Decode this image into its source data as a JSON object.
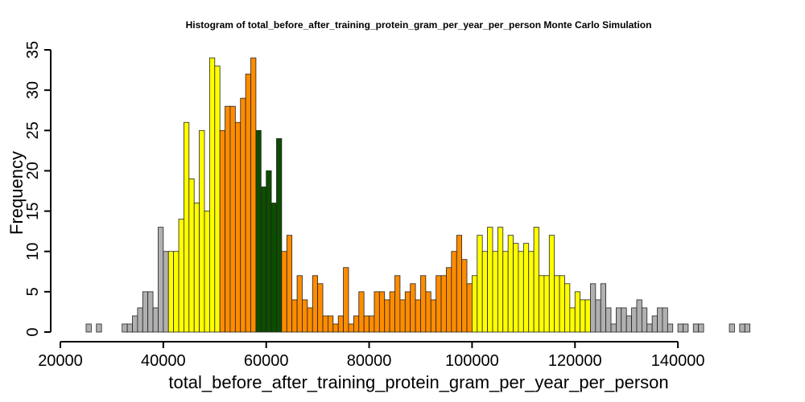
{
  "chart_data": {
    "type": "bar",
    "title": "Histogram of  total_before_after_training_protein_gram_per_year_per_person  Monte Carlo Simulation",
    "xlabel": "total_before_after_training_protein_gram_per_year_per_person",
    "ylabel": "Frequency",
    "xlim": [
      20000,
      155000
    ],
    "ylim": [
      0,
      35
    ],
    "bin_width": 1000,
    "x_ticks": [
      20000,
      40000,
      60000,
      80000,
      100000,
      120000,
      140000
    ],
    "x_tick_labels": [
      "20000",
      "40000",
      "60000",
      "80000",
      "100000",
      "120000",
      "140000"
    ],
    "y_ticks": [
      0,
      5,
      10,
      15,
      20,
      25,
      30,
      35
    ],
    "y_tick_labels": [
      "0",
      "5",
      "10",
      "15",
      "20",
      "25",
      "30",
      "35"
    ],
    "grid": false,
    "colors": {
      "gray": "#b0b0b0",
      "yellow": "#ffff00",
      "orange": "#ff8c00",
      "green": "#0d4d00"
    },
    "bins": [
      {
        "x0": 25000,
        "x1": 26000,
        "count": 1,
        "color": "gray"
      },
      {
        "x0": 26000,
        "x1": 27000,
        "count": 0,
        "color": "gray"
      },
      {
        "x0": 27000,
        "x1": 28000,
        "count": 1,
        "color": "gray"
      },
      {
        "x0": 28000,
        "x1": 29000,
        "count": 0,
        "color": "gray"
      },
      {
        "x0": 29000,
        "x1": 30000,
        "count": 0,
        "color": "gray"
      },
      {
        "x0": 30000,
        "x1": 31000,
        "count": 0,
        "color": "gray"
      },
      {
        "x0": 31000,
        "x1": 32000,
        "count": 0,
        "color": "gray"
      },
      {
        "x0": 32000,
        "x1": 33000,
        "count": 1,
        "color": "gray"
      },
      {
        "x0": 33000,
        "x1": 34000,
        "count": 1,
        "color": "gray"
      },
      {
        "x0": 34000,
        "x1": 35000,
        "count": 2,
        "color": "gray"
      },
      {
        "x0": 35000,
        "x1": 36000,
        "count": 3,
        "color": "gray"
      },
      {
        "x0": 36000,
        "x1": 37000,
        "count": 5,
        "color": "gray"
      },
      {
        "x0": 37000,
        "x1": 38000,
        "count": 5,
        "color": "gray"
      },
      {
        "x0": 38000,
        "x1": 39000,
        "count": 3,
        "color": "gray"
      },
      {
        "x0": 39000,
        "x1": 40000,
        "count": 13,
        "color": "gray"
      },
      {
        "x0": 40000,
        "x1": 41000,
        "count": 10,
        "color": "gray"
      },
      {
        "x0": 41000,
        "x1": 42000,
        "count": 10,
        "color": "yellow"
      },
      {
        "x0": 42000,
        "x1": 43000,
        "count": 10,
        "color": "yellow"
      },
      {
        "x0": 43000,
        "x1": 44000,
        "count": 14,
        "color": "yellow"
      },
      {
        "x0": 44000,
        "x1": 45000,
        "count": 26,
        "color": "yellow"
      },
      {
        "x0": 45000,
        "x1": 46000,
        "count": 19,
        "color": "yellow"
      },
      {
        "x0": 46000,
        "x1": 47000,
        "count": 16,
        "color": "yellow"
      },
      {
        "x0": 47000,
        "x1": 48000,
        "count": 25,
        "color": "yellow"
      },
      {
        "x0": 48000,
        "x1": 49000,
        "count": 15,
        "color": "yellow"
      },
      {
        "x0": 49000,
        "x1": 50000,
        "count": 34,
        "color": "yellow"
      },
      {
        "x0": 50000,
        "x1": 51000,
        "count": 33,
        "color": "yellow"
      },
      {
        "x0": 51000,
        "x1": 52000,
        "count": 25,
        "color": "orange"
      },
      {
        "x0": 52000,
        "x1": 53000,
        "count": 28,
        "color": "orange"
      },
      {
        "x0": 53000,
        "x1": 54000,
        "count": 28,
        "color": "orange"
      },
      {
        "x0": 54000,
        "x1": 55000,
        "count": 26,
        "color": "orange"
      },
      {
        "x0": 55000,
        "x1": 56000,
        "count": 29,
        "color": "orange"
      },
      {
        "x0": 56000,
        "x1": 57000,
        "count": 32,
        "color": "orange"
      },
      {
        "x0": 57000,
        "x1": 58000,
        "count": 34,
        "color": "orange"
      },
      {
        "x0": 58000,
        "x1": 59000,
        "count": 25,
        "color": "green"
      },
      {
        "x0": 59000,
        "x1": 60000,
        "count": 18,
        "color": "green"
      },
      {
        "x0": 60000,
        "x1": 61000,
        "count": 20,
        "color": "green"
      },
      {
        "x0": 61000,
        "x1": 62000,
        "count": 16,
        "color": "green"
      },
      {
        "x0": 62000,
        "x1": 63000,
        "count": 24,
        "color": "green"
      },
      {
        "x0": 63000,
        "x1": 64000,
        "count": 10,
        "color": "orange"
      },
      {
        "x0": 64000,
        "x1": 65000,
        "count": 12,
        "color": "orange"
      },
      {
        "x0": 65000,
        "x1": 66000,
        "count": 4,
        "color": "orange"
      },
      {
        "x0": 66000,
        "x1": 67000,
        "count": 7,
        "color": "orange"
      },
      {
        "x0": 67000,
        "x1": 68000,
        "count": 4,
        "color": "orange"
      },
      {
        "x0": 68000,
        "x1": 69000,
        "count": 3,
        "color": "orange"
      },
      {
        "x0": 69000,
        "x1": 70000,
        "count": 7,
        "color": "orange"
      },
      {
        "x0": 70000,
        "x1": 71000,
        "count": 6,
        "color": "orange"
      },
      {
        "x0": 71000,
        "x1": 72000,
        "count": 2,
        "color": "orange"
      },
      {
        "x0": 72000,
        "x1": 73000,
        "count": 2,
        "color": "orange"
      },
      {
        "x0": 73000,
        "x1": 74000,
        "count": 1,
        "color": "orange"
      },
      {
        "x0": 74000,
        "x1": 75000,
        "count": 2,
        "color": "orange"
      },
      {
        "x0": 75000,
        "x1": 76000,
        "count": 8,
        "color": "orange"
      },
      {
        "x0": 76000,
        "x1": 77000,
        "count": 1,
        "color": "orange"
      },
      {
        "x0": 77000,
        "x1": 78000,
        "count": 2,
        "color": "orange"
      },
      {
        "x0": 78000,
        "x1": 79000,
        "count": 5,
        "color": "orange"
      },
      {
        "x0": 79000,
        "x1": 80000,
        "count": 2,
        "color": "orange"
      },
      {
        "x0": 80000,
        "x1": 81000,
        "count": 2,
        "color": "orange"
      },
      {
        "x0": 81000,
        "x1": 82000,
        "count": 5,
        "color": "orange"
      },
      {
        "x0": 82000,
        "x1": 83000,
        "count": 5,
        "color": "orange"
      },
      {
        "x0": 83000,
        "x1": 84000,
        "count": 4,
        "color": "orange"
      },
      {
        "x0": 84000,
        "x1": 85000,
        "count": 5,
        "color": "orange"
      },
      {
        "x0": 85000,
        "x1": 86000,
        "count": 7,
        "color": "orange"
      },
      {
        "x0": 86000,
        "x1": 87000,
        "count": 4,
        "color": "orange"
      },
      {
        "x0": 87000,
        "x1": 88000,
        "count": 5,
        "color": "orange"
      },
      {
        "x0": 88000,
        "x1": 89000,
        "count": 6,
        "color": "orange"
      },
      {
        "x0": 89000,
        "x1": 90000,
        "count": 4,
        "color": "orange"
      },
      {
        "x0": 90000,
        "x1": 91000,
        "count": 7,
        "color": "orange"
      },
      {
        "x0": 91000,
        "x1": 92000,
        "count": 5,
        "color": "orange"
      },
      {
        "x0": 92000,
        "x1": 93000,
        "count": 4,
        "color": "orange"
      },
      {
        "x0": 93000,
        "x1": 94000,
        "count": 7,
        "color": "orange"
      },
      {
        "x0": 94000,
        "x1": 95000,
        "count": 7,
        "color": "orange"
      },
      {
        "x0": 95000,
        "x1": 96000,
        "count": 8,
        "color": "orange"
      },
      {
        "x0": 96000,
        "x1": 97000,
        "count": 10,
        "color": "orange"
      },
      {
        "x0": 97000,
        "x1": 98000,
        "count": 12,
        "color": "orange"
      },
      {
        "x0": 98000,
        "x1": 99000,
        "count": 9,
        "color": "orange"
      },
      {
        "x0": 99000,
        "x1": 100000,
        "count": 6,
        "color": "orange"
      },
      {
        "x0": 100000,
        "x1": 101000,
        "count": 7,
        "color": "yellow"
      },
      {
        "x0": 101000,
        "x1": 102000,
        "count": 12,
        "color": "yellow"
      },
      {
        "x0": 102000,
        "x1": 103000,
        "count": 10,
        "color": "yellow"
      },
      {
        "x0": 103000,
        "x1": 104000,
        "count": 13,
        "color": "yellow"
      },
      {
        "x0": 104000,
        "x1": 105000,
        "count": 10,
        "color": "yellow"
      },
      {
        "x0": 105000,
        "x1": 106000,
        "count": 13,
        "color": "yellow"
      },
      {
        "x0": 106000,
        "x1": 107000,
        "count": 10,
        "color": "yellow"
      },
      {
        "x0": 107000,
        "x1": 108000,
        "count": 12,
        "color": "yellow"
      },
      {
        "x0": 108000,
        "x1": 109000,
        "count": 11,
        "color": "yellow"
      },
      {
        "x0": 109000,
        "x1": 110000,
        "count": 10,
        "color": "yellow"
      },
      {
        "x0": 110000,
        "x1": 111000,
        "count": 11,
        "color": "yellow"
      },
      {
        "x0": 111000,
        "x1": 112000,
        "count": 10,
        "color": "yellow"
      },
      {
        "x0": 112000,
        "x1": 113000,
        "count": 13,
        "color": "yellow"
      },
      {
        "x0": 113000,
        "x1": 114000,
        "count": 7,
        "color": "yellow"
      },
      {
        "x0": 114000,
        "x1": 115000,
        "count": 7,
        "color": "yellow"
      },
      {
        "x0": 115000,
        "x1": 116000,
        "count": 12,
        "color": "yellow"
      },
      {
        "x0": 116000,
        "x1": 117000,
        "count": 7,
        "color": "yellow"
      },
      {
        "x0": 117000,
        "x1": 118000,
        "count": 7,
        "color": "yellow"
      },
      {
        "x0": 118000,
        "x1": 119000,
        "count": 6,
        "color": "yellow"
      },
      {
        "x0": 119000,
        "x1": 120000,
        "count": 3,
        "color": "yellow"
      },
      {
        "x0": 120000,
        "x1": 121000,
        "count": 5,
        "color": "yellow"
      },
      {
        "x0": 121000,
        "x1": 122000,
        "count": 4,
        "color": "yellow"
      },
      {
        "x0": 122000,
        "x1": 123000,
        "count": 4,
        "color": "yellow"
      },
      {
        "x0": 123000,
        "x1": 124000,
        "count": 6,
        "color": "gray"
      },
      {
        "x0": 124000,
        "x1": 125000,
        "count": 4,
        "color": "gray"
      },
      {
        "x0": 125000,
        "x1": 126000,
        "count": 6,
        "color": "gray"
      },
      {
        "x0": 126000,
        "x1": 127000,
        "count": 3,
        "color": "gray"
      },
      {
        "x0": 127000,
        "x1": 128000,
        "count": 1,
        "color": "gray"
      },
      {
        "x0": 128000,
        "x1": 129000,
        "count": 3,
        "color": "gray"
      },
      {
        "x0": 129000,
        "x1": 130000,
        "count": 3,
        "color": "gray"
      },
      {
        "x0": 130000,
        "x1": 131000,
        "count": 2,
        "color": "gray"
      },
      {
        "x0": 131000,
        "x1": 132000,
        "count": 3,
        "color": "gray"
      },
      {
        "x0": 132000,
        "x1": 133000,
        "count": 4,
        "color": "gray"
      },
      {
        "x0": 133000,
        "x1": 134000,
        "count": 3,
        "color": "gray"
      },
      {
        "x0": 134000,
        "x1": 135000,
        "count": 1,
        "color": "gray"
      },
      {
        "x0": 135000,
        "x1": 136000,
        "count": 2,
        "color": "gray"
      },
      {
        "x0": 136000,
        "x1": 137000,
        "count": 3,
        "color": "gray"
      },
      {
        "x0": 137000,
        "x1": 138000,
        "count": 3,
        "color": "gray"
      },
      {
        "x0": 138000,
        "x1": 139000,
        "count": 1,
        "color": "gray"
      },
      {
        "x0": 139000,
        "x1": 140000,
        "count": 0,
        "color": "gray"
      },
      {
        "x0": 140000,
        "x1": 141000,
        "count": 1,
        "color": "gray"
      },
      {
        "x0": 141000,
        "x1": 142000,
        "count": 1,
        "color": "gray"
      },
      {
        "x0": 142000,
        "x1": 143000,
        "count": 0,
        "color": "gray"
      },
      {
        "x0": 143000,
        "x1": 144000,
        "count": 1,
        "color": "gray"
      },
      {
        "x0": 144000,
        "x1": 145000,
        "count": 1,
        "color": "gray"
      },
      {
        "x0": 145000,
        "x1": 146000,
        "count": 0,
        "color": "gray"
      },
      {
        "x0": 146000,
        "x1": 147000,
        "count": 0,
        "color": "gray"
      },
      {
        "x0": 147000,
        "x1": 148000,
        "count": 0,
        "color": "gray"
      },
      {
        "x0": 148000,
        "x1": 149000,
        "count": 0,
        "color": "gray"
      },
      {
        "x0": 149000,
        "x1": 150000,
        "count": 0,
        "color": "gray"
      },
      {
        "x0": 150000,
        "x1": 151000,
        "count": 1,
        "color": "gray"
      },
      {
        "x0": 151000,
        "x1": 152000,
        "count": 0,
        "color": "gray"
      },
      {
        "x0": 152000,
        "x1": 153000,
        "count": 1,
        "color": "gray"
      },
      {
        "x0": 153000,
        "x1": 154000,
        "count": 1,
        "color": "gray"
      }
    ]
  }
}
